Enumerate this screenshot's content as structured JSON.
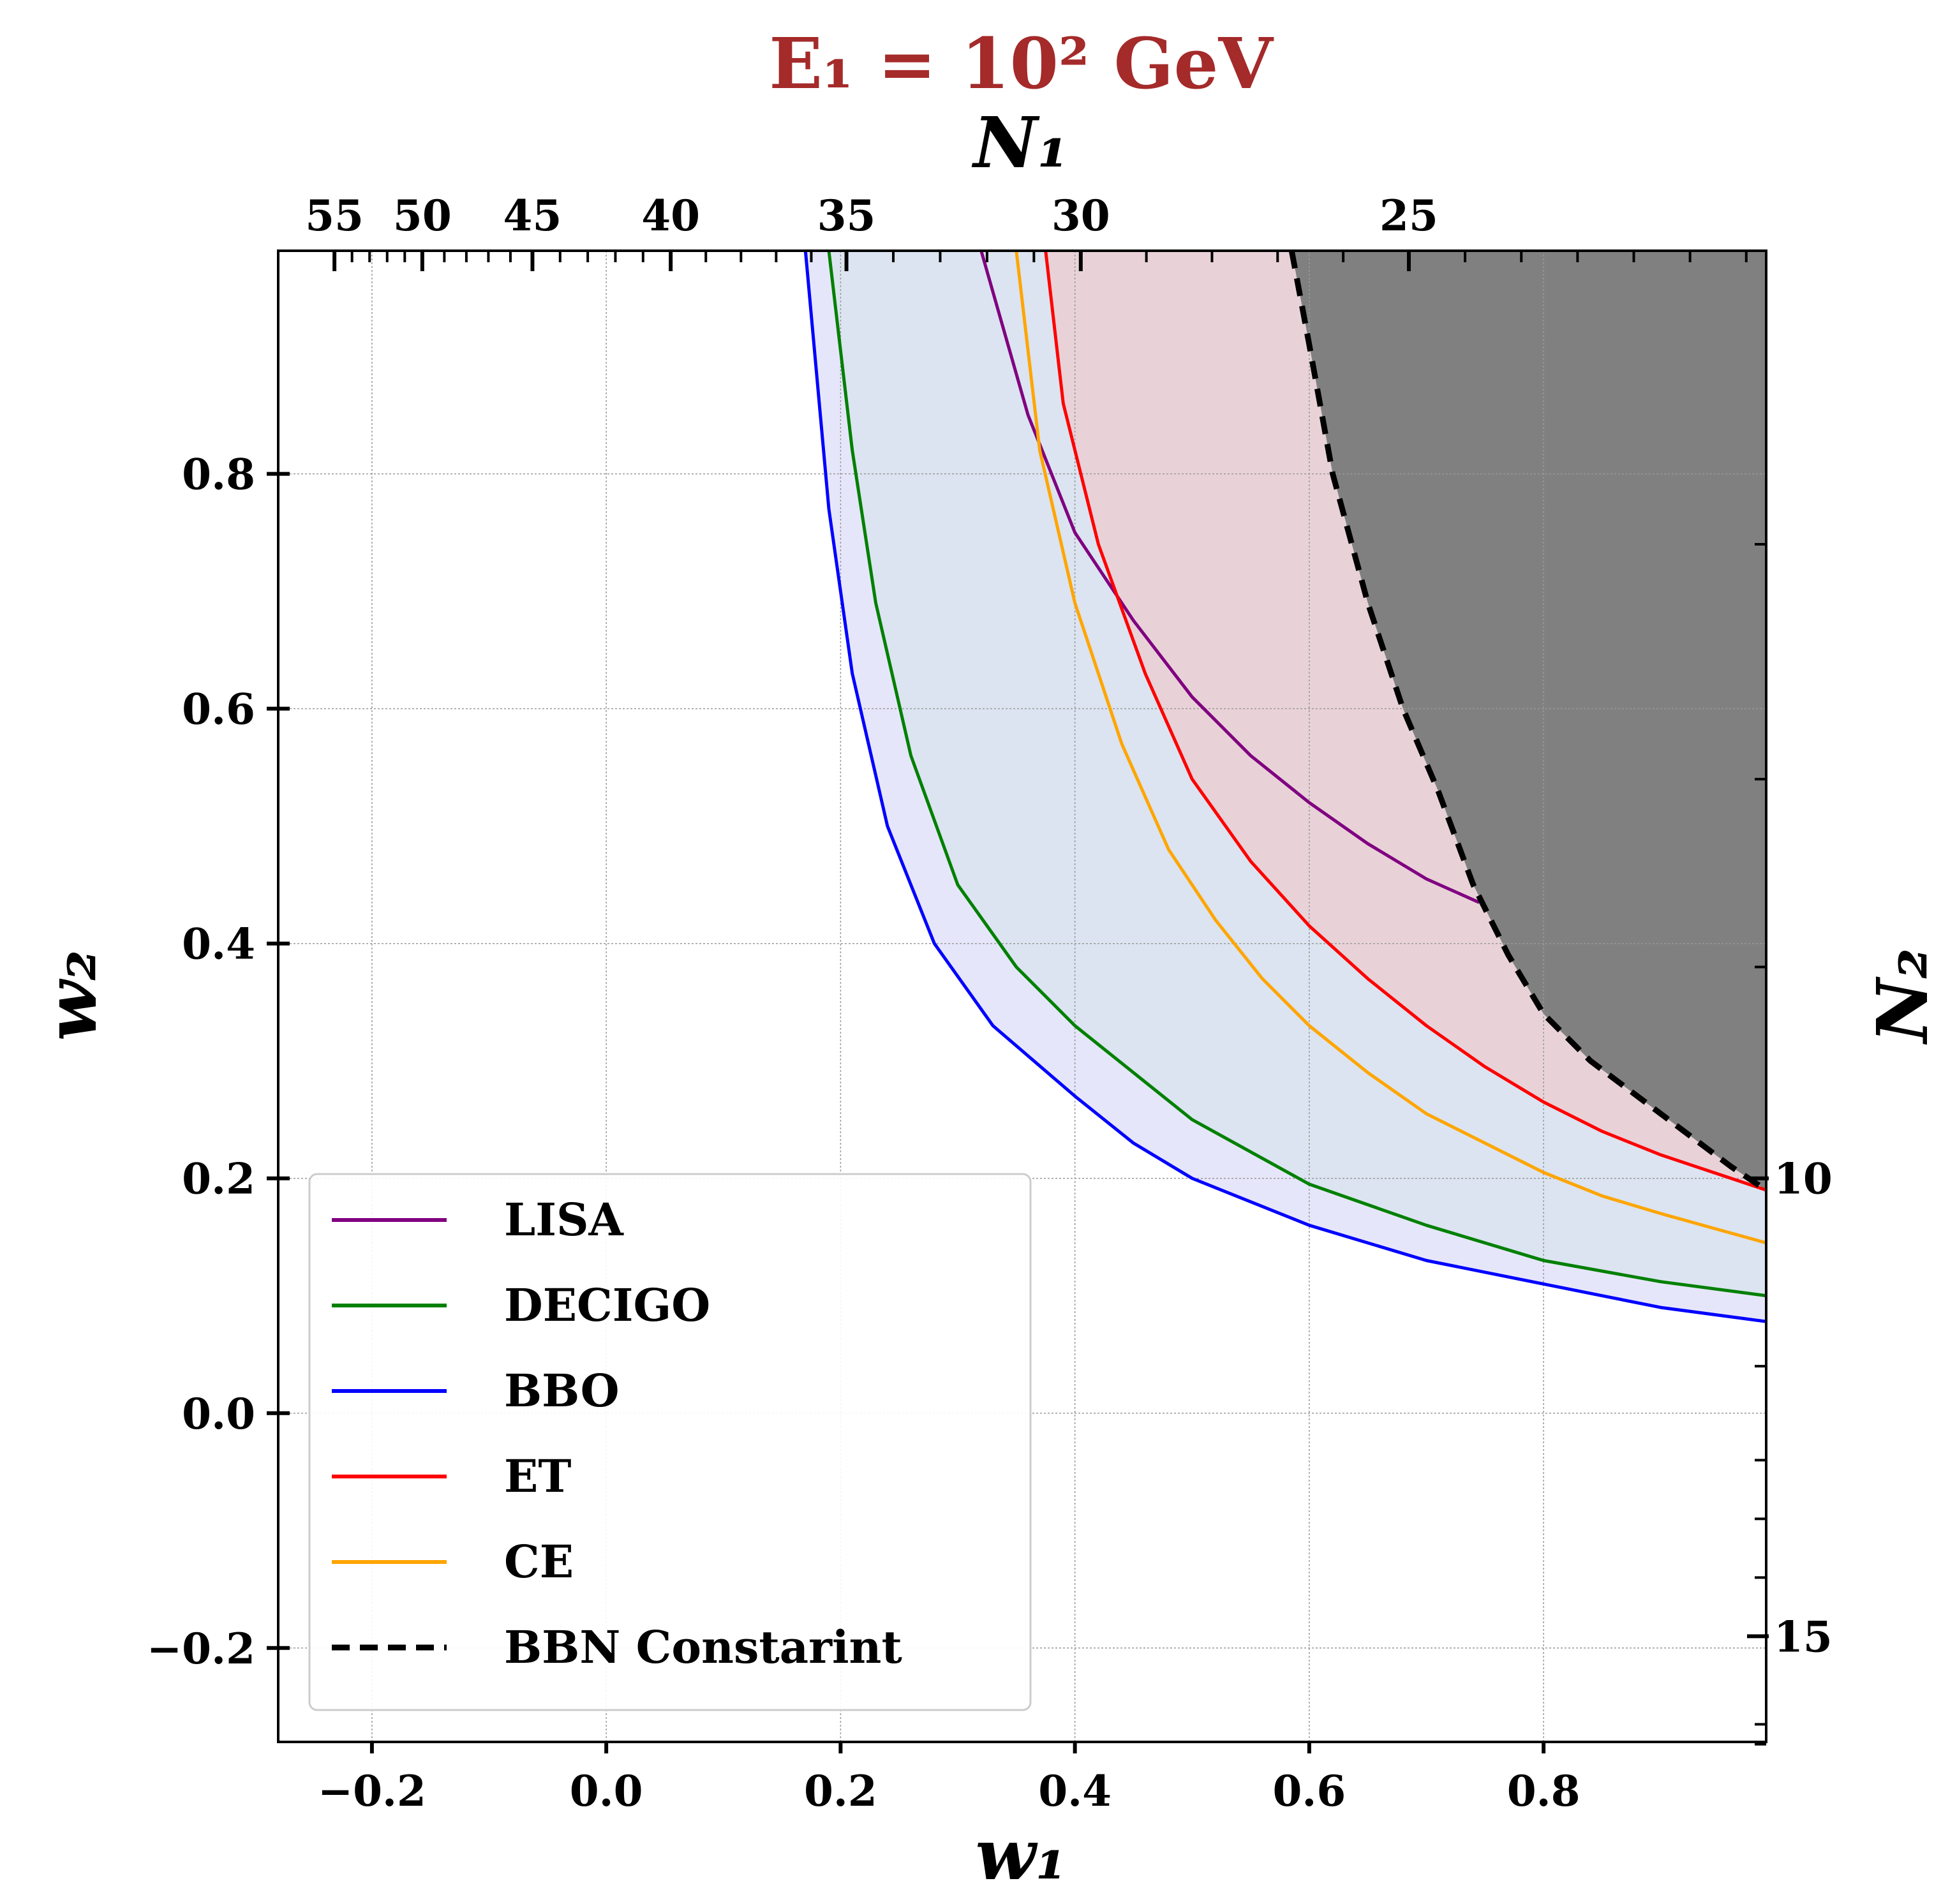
{
  "chart_data": {
    "type": "line",
    "title": "E₁ = 10² GeV",
    "title_color": "#a52a2a",
    "xlabel": "w₁",
    "ylabel": "w₂",
    "top_xlabel": "N₁",
    "right_ylabel": "N₂",
    "xlim": [
      -0.28,
      0.99
    ],
    "ylim": [
      -0.28,
      0.99
    ],
    "xticks": [
      -0.2,
      0.0,
      0.2,
      0.4,
      0.6,
      0.8
    ],
    "xtick_labels": [
      "−0.2",
      "0.0",
      "0.2",
      "0.4",
      "0.6",
      "0.8"
    ],
    "yticks": [
      -0.2,
      0.0,
      0.2,
      0.4,
      0.6,
      0.8
    ],
    "ytick_labels": [
      "−0.2",
      "0.0",
      "0.2",
      "0.4",
      "0.6",
      "0.8"
    ],
    "top_ticks": [
      {
        "w1": -0.232,
        "label": "55"
      },
      {
        "w1": -0.157,
        "label": "50"
      },
      {
        "w1": -0.063,
        "label": "45"
      },
      {
        "w1": 0.055,
        "label": "40"
      },
      {
        "w1": 0.205,
        "label": "35"
      },
      {
        "w1": 0.405,
        "label": "30"
      },
      {
        "w1": 0.685,
        "label": "25"
      }
    ],
    "right_ticks": [
      {
        "w2": 0.2,
        "label": "10"
      },
      {
        "w2": -0.19,
        "label": "15"
      }
    ],
    "grid": true,
    "legend_position": "lower-left",
    "legend": [
      "LISA",
      "DECIGO",
      "BBO",
      "ET",
      "CE",
      "BBN Constarint"
    ],
    "series": [
      {
        "name": "LISA",
        "color": "#800080",
        "x": [
          0.32,
          0.36,
          0.4,
          0.45,
          0.5,
          0.55,
          0.6,
          0.65,
          0.7,
          0.745
        ],
        "y": [
          0.99,
          0.85,
          0.75,
          0.675,
          0.61,
          0.56,
          0.52,
          0.485,
          0.455,
          0.435
        ]
      },
      {
        "name": "DECIGO",
        "color": "#008000",
        "x": [
          0.19,
          0.21,
          0.23,
          0.26,
          0.3,
          0.35,
          0.4,
          0.45,
          0.5,
          0.6,
          0.7,
          0.8,
          0.9,
          0.99
        ],
        "y": [
          0.99,
          0.82,
          0.69,
          0.56,
          0.45,
          0.38,
          0.33,
          0.29,
          0.25,
          0.195,
          0.16,
          0.13,
          0.112,
          0.1
        ]
      },
      {
        "name": "BBO",
        "color": "#0000ff",
        "x": [
          0.17,
          0.19,
          0.21,
          0.24,
          0.28,
          0.33,
          0.4,
          0.45,
          0.5,
          0.6,
          0.7,
          0.8,
          0.9,
          0.99
        ],
        "y": [
          0.99,
          0.77,
          0.63,
          0.5,
          0.4,
          0.33,
          0.27,
          0.23,
          0.2,
          0.16,
          0.13,
          0.11,
          0.09,
          0.078
        ]
      },
      {
        "name": "ET",
        "color": "#ff0000",
        "x": [
          0.375,
          0.39,
          0.42,
          0.46,
          0.5,
          0.55,
          0.6,
          0.65,
          0.7,
          0.75,
          0.8,
          0.85,
          0.9,
          0.99
        ],
        "y": [
          0.99,
          0.86,
          0.74,
          0.63,
          0.54,
          0.47,
          0.415,
          0.37,
          0.33,
          0.295,
          0.265,
          0.24,
          0.22,
          0.19
        ]
      },
      {
        "name": "CE",
        "color": "#ffa500",
        "x": [
          0.35,
          0.37,
          0.4,
          0.44,
          0.48,
          0.52,
          0.56,
          0.6,
          0.65,
          0.7,
          0.75,
          0.8,
          0.85,
          0.9,
          0.99
        ],
        "y": [
          0.99,
          0.82,
          0.69,
          0.57,
          0.48,
          0.42,
          0.37,
          0.33,
          0.29,
          0.255,
          0.23,
          0.205,
          0.185,
          0.17,
          0.145
        ]
      },
      {
        "name": "BBN Constarint",
        "color": "#000000",
        "dash": true,
        "x": [
          0.585,
          0.6,
          0.62,
          0.65,
          0.68,
          0.71,
          0.74,
          0.77,
          0.8,
          0.84,
          0.88,
          0.92,
          0.96,
          0.99
        ],
        "y": [
          0.99,
          0.91,
          0.8,
          0.69,
          0.6,
          0.53,
          0.45,
          0.39,
          0.34,
          0.3,
          0.27,
          0.24,
          0.21,
          0.19
        ]
      }
    ],
    "shaded_regions": [
      {
        "between": [
          "BBO",
          "DECIGO"
        ],
        "color": "#e6e6fa"
      },
      {
        "between": [
          "DECIGO",
          "ET"
        ],
        "color": "#dbe4f0"
      },
      {
        "between": [
          "ET",
          "BBN Constarint"
        ],
        "color": "#e8d2d8"
      },
      {
        "above": "BBN Constarint",
        "color": "#808080"
      }
    ]
  }
}
